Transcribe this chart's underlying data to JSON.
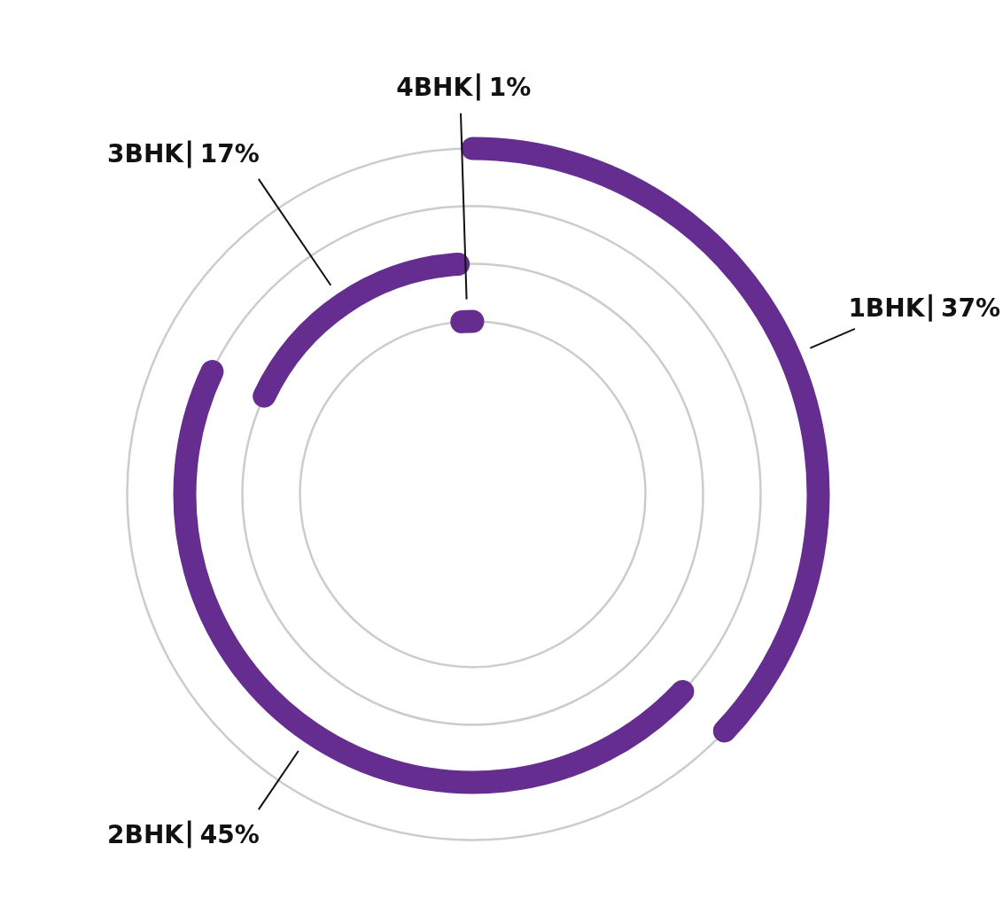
{
  "chart_data": {
    "type": "other",
    "categories": [
      "1BHK",
      "2BHK",
      "3BHK",
      "4BHK"
    ],
    "values": [
      37,
      45,
      17,
      1
    ],
    "value_labels": [
      "37%",
      "45%",
      "17%",
      "1%"
    ],
    "colors": [
      "#652d90",
      "#652d90",
      "#652d90",
      "#652d90"
    ]
  }
}
